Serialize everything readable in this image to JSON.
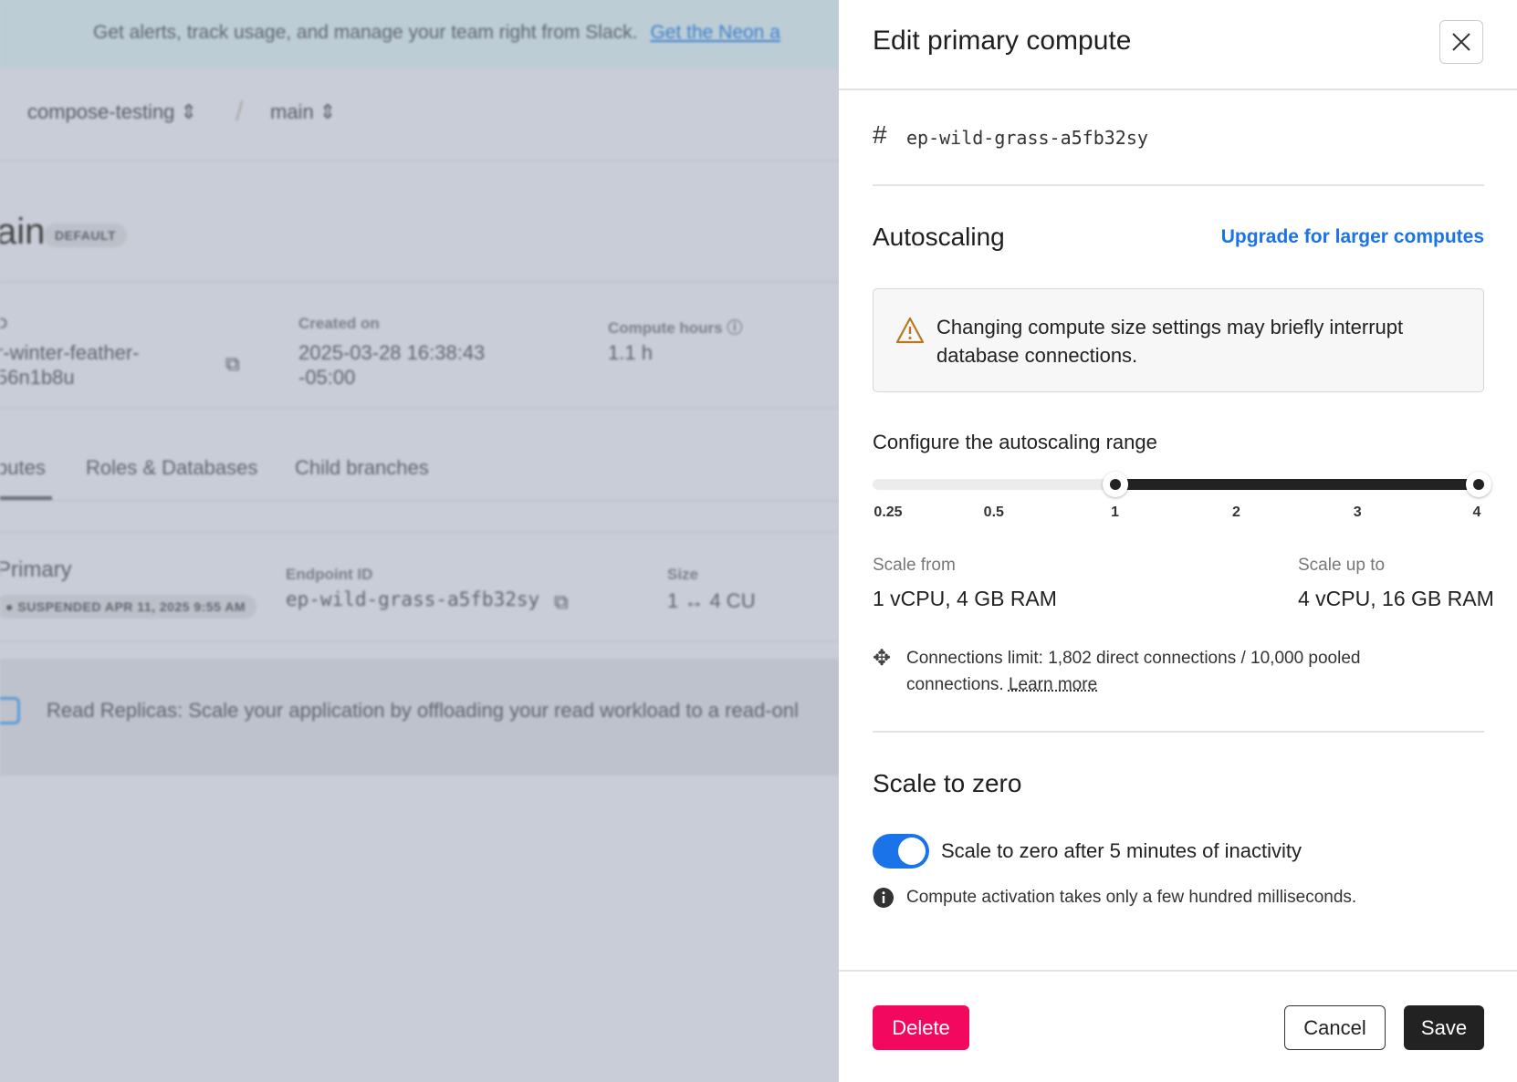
{
  "background": {
    "banner_text": "Get alerts, track usage, and manage your team right from Slack.",
    "banner_link": "Get the Neon a",
    "breadcrumb": [
      "compose-testing",
      "main"
    ],
    "branch_title": "ain",
    "branch_badge": "DEFAULT",
    "id_label": "D",
    "id_value_1": "r-winter-feather-",
    "id_value_2": "56n1b8u",
    "created_label": "Created on",
    "created_value_1": "2025-03-28 16:38:43",
    "created_value_2": "-05:00",
    "compute_hours_label": "Compute hours",
    "compute_hours_value": "1.1 h",
    "tabs": [
      "putes",
      "Roles & Databases",
      "Child branches"
    ],
    "compute": {
      "name": "Primary",
      "status": "SUSPENDED APR 11, 2025 9:55 AM",
      "endpoint_label": "Endpoint ID",
      "endpoint_value": "ep-wild-grass-a5fb32sy",
      "size_label": "Size",
      "size_value": "1 ↔ 4 CU"
    },
    "replica_text": "Read Replicas: Scale your application by offloading your read workload to a read-onl"
  },
  "panel": {
    "title": "Edit primary compute",
    "endpoint_id": "ep-wild-grass-a5fb32sy",
    "autoscaling": {
      "heading": "Autoscaling",
      "upgrade_link": "Upgrade for larger computes",
      "warning": "Changing compute size settings may briefly interrupt database connections.",
      "range_label": "Configure the autoscaling range",
      "ticks": [
        "0.25",
        "0.5",
        "1",
        "2",
        "3",
        "4"
      ],
      "min_value": 1,
      "max_value": 4,
      "scale_from_label": "Scale from",
      "scale_from_value": "1 vCPU, 4 GB RAM",
      "scale_to_label": "Scale up to",
      "scale_to_value": "4 vCPU, 16 GB RAM",
      "connections_text": "Connections limit: 1,802 direct connections / 10,000 pooled connections.",
      "learn_more": "Learn more"
    },
    "scale_to_zero": {
      "heading": "Scale to zero",
      "toggle_on": true,
      "toggle_label": "Scale to zero after 5 minutes of inactivity",
      "info": "Compute activation takes only a few hundred milliseconds."
    },
    "footer": {
      "delete": "Delete",
      "cancel": "Cancel",
      "save": "Save"
    },
    "colors": {
      "accent": "#1a73e8",
      "danger": "#f2085e",
      "primary_button": "#222222"
    }
  }
}
